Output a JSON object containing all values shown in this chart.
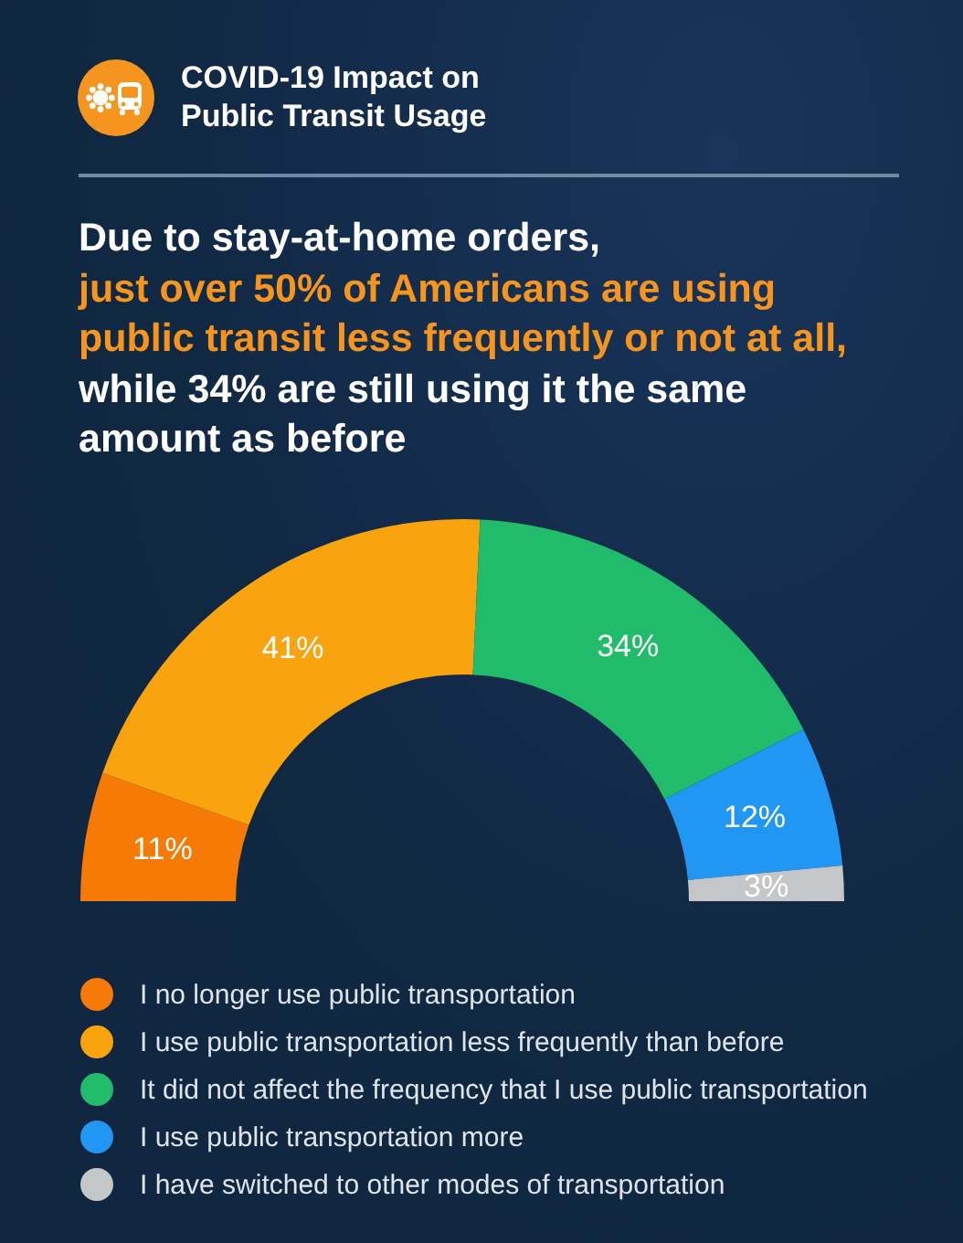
{
  "chart_data": {
    "type": "donut",
    "title": "COVID-19 Impact on\nPublic Transit Usage",
    "subtitle": "Due to stay-at-home orders,\njust over 50% of Americans are using\npublic transit less frequently or not at all,\nwhile 34% are still using it the same\namount as before",
    "categories": [
      "I no longer use public transportation",
      "I use public transportation less frequently than before",
      "It did not affect the frequency that I use public transportation",
      "I use public transportation more",
      "I have switched to other modes of transportation"
    ],
    "values": [
      11,
      41,
      34,
      12,
      3
    ],
    "colors": [
      "#f57b06",
      "#f9a30f",
      "#20bc6c",
      "#2196f3",
      "#c5c6c8"
    ],
    "value_labels": [
      "11%",
      "41%",
      "34%",
      "12%",
      "3%"
    ],
    "legend": "bottom"
  }
}
